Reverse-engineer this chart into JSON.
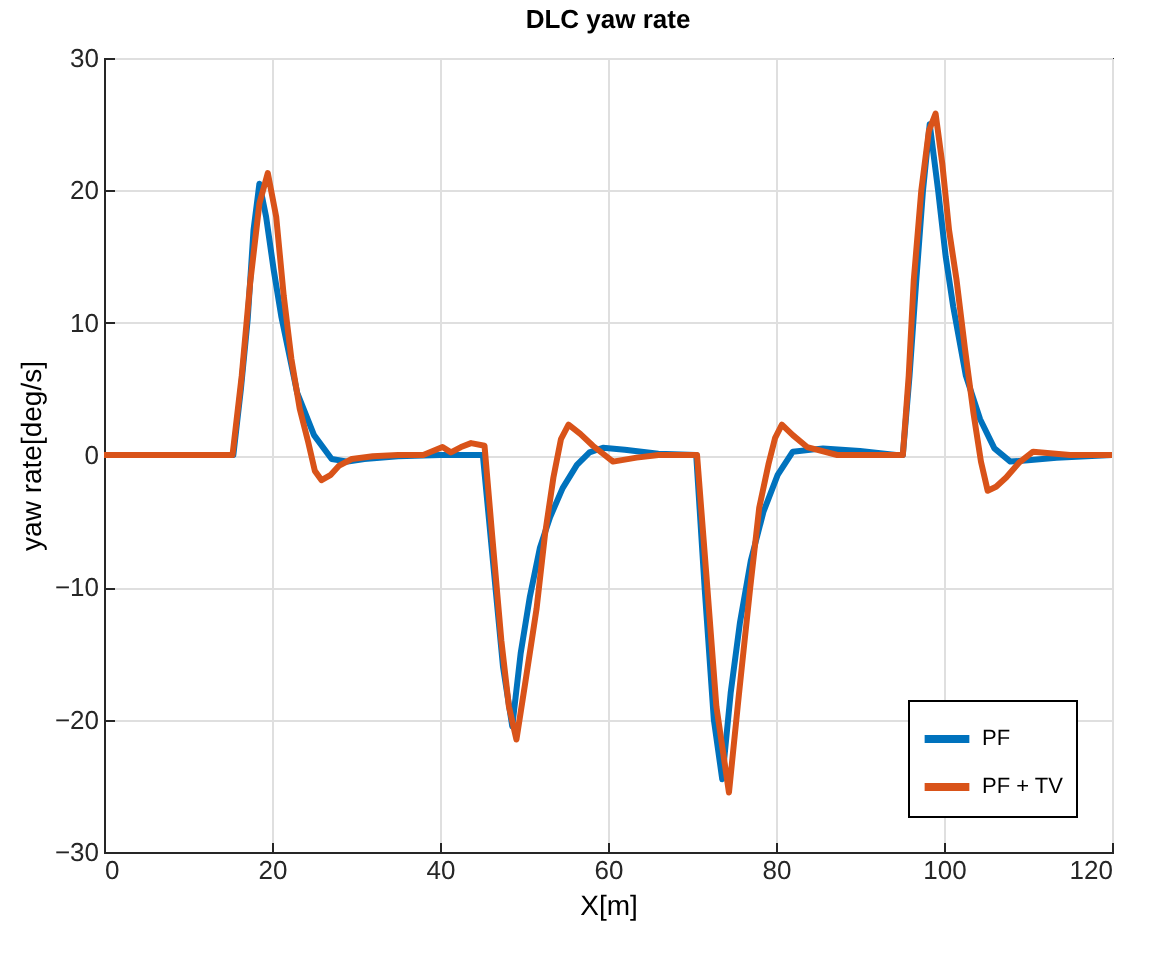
{
  "chart_data": {
    "type": "line",
    "title": "DLC yaw rate",
    "xlabel": "X[m]",
    "ylabel": "yaw rate[deg/s]",
    "xlim": [
      0,
      120
    ],
    "xticks": [
      0,
      20,
      40,
      60,
      80,
      100,
      120
    ],
    "ylim": [
      -30,
      30
    ],
    "yticks": [
      -30,
      -20,
      -10,
      0,
      10,
      20,
      30
    ],
    "grid": true,
    "legend": "bottom right",
    "line_style": "solid",
    "series": [
      {
        "name": "PF",
        "color": "#0072bd",
        "x": [
          0,
          15.4,
          16.3,
          17.1,
          17.8,
          18.5,
          19.3,
          20.2,
          21.1,
          23.0,
          25.0,
          27.1,
          29,
          31,
          35,
          40,
          45.1,
          46.3,
          47.5,
          48.6,
          49.6,
          50.7,
          51.9,
          53.1,
          54.6,
          56.3,
          57.8,
          59.4,
          62,
          66,
          70.5,
          71.5,
          72.6,
          73.6,
          74.6,
          75.7,
          77,
          78.5,
          80.2,
          82.0,
          85.6,
          90,
          94.3,
          95.1,
          95.9,
          96.7,
          97.5,
          98.3,
          99.3,
          100.2,
          101.1,
          102.6,
          104.3,
          106,
          107.9,
          110,
          113.4,
          120
        ],
        "values": [
          0,
          0,
          5,
          10.2,
          17,
          20.5,
          18,
          14,
          10.5,
          4.7,
          1.5,
          -0.3,
          -0.5,
          -0.3,
          -0.1,
          0,
          0,
          -8,
          -16,
          -20.5,
          -15,
          -10.7,
          -7,
          -4.7,
          -2.5,
          -0.75,
          0.2,
          0.55,
          0.4,
          0.1,
          0,
          -10,
          -20,
          -24.5,
          -18,
          -12.7,
          -8,
          -4.3,
          -1.5,
          0.25,
          0.5,
          0.3,
          0,
          0,
          6,
          13.2,
          20,
          25,
          20,
          15,
          11.2,
          6,
          2.7,
          0.5,
          -0.5,
          -0.4,
          -0.2,
          0
        ]
      },
      {
        "name": "PF + TV",
        "color": "#d95319",
        "x": [
          0,
          15.3,
          16.4,
          17.4,
          18.5,
          19.5,
          20.5,
          21.4,
          22.3,
          23.3,
          24.3,
          25.1,
          25.9,
          27,
          28,
          29.5,
          32,
          35,
          38,
          40.3,
          41.3,
          42.5,
          43.7,
          45.3,
          46.2,
          47.3,
          48.2,
          49.1,
          50.2,
          51.5,
          52.5,
          53.5,
          54.4,
          55.3,
          56.7,
          58.2,
          60.6,
          63.4,
          66,
          70.6,
          71.7,
          72.9,
          74.4,
          75.6,
          76.9,
          78,
          79.1,
          79.9,
          80.7,
          82,
          83.7,
          87.3,
          92,
          95.1,
          95.8,
          96.4,
          97.3,
          98.2,
          99.0,
          99.8,
          100.6,
          101.5,
          102.5,
          103.5,
          104.4,
          105.2,
          106.2,
          107.4,
          108.9,
          110.6,
          115,
          120
        ],
        "values": [
          0,
          0,
          6,
          13,
          19,
          21.3,
          18,
          12,
          7.3,
          3.5,
          1.0,
          -1.2,
          -1.9,
          -1.5,
          -0.8,
          -0.3,
          -0.1,
          0,
          0,
          0.6,
          0.2,
          0.6,
          0.9,
          0.7,
          -6,
          -14,
          -19,
          -21.5,
          -17,
          -11.6,
          -6,
          -1.7,
          1.2,
          2.3,
          1.6,
          0.7,
          -0.5,
          -0.2,
          0,
          0,
          -9,
          -19,
          -25.5,
          -18,
          -10.2,
          -4,
          -0.7,
          1.3,
          2.3,
          1.5,
          0.6,
          0,
          0,
          0,
          6,
          13.2,
          20,
          24.5,
          25.8,
          22,
          17,
          13.2,
          8,
          3.2,
          -0.5,
          -2.7,
          -2.4,
          -1.7,
          -0.6,
          0.25,
          0,
          0
        ]
      }
    ]
  }
}
